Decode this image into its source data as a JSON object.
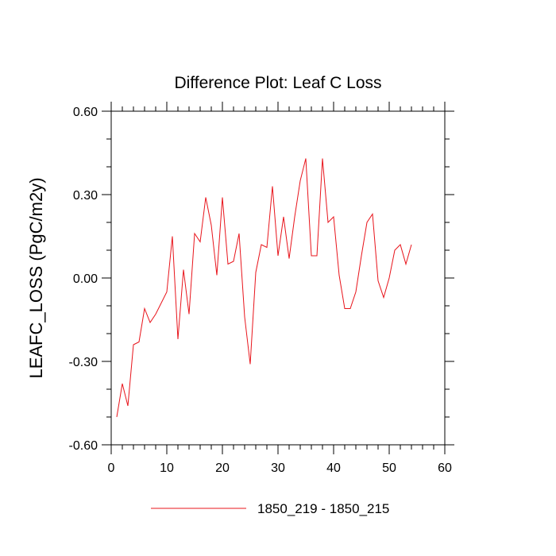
{
  "chart_data": {
    "type": "line",
    "title": "Difference Plot: Leaf C Loss",
    "xlabel": "",
    "ylabel": "LEAFC_LOSS  (PgC/m2y)",
    "xlim": [
      0,
      60
    ],
    "ylim": [
      -0.6,
      0.6
    ],
    "x_ticks": [
      0,
      10,
      20,
      30,
      40,
      50,
      60
    ],
    "x_tick_labels": [
      "0",
      "10",
      "20",
      "30",
      "40",
      "50",
      "60"
    ],
    "y_ticks": [
      -0.6,
      -0.3,
      0.0,
      0.3,
      0.6
    ],
    "y_tick_labels": [
      "-0.60",
      "-0.30",
      "0.00",
      "0.30",
      "0.60"
    ],
    "grid": false,
    "legend_position": "bottom",
    "series": [
      {
        "name": "1850_219 - 1850_215",
        "color": "#e8141b",
        "x": [
          1,
          2,
          3,
          4,
          5,
          6,
          7,
          8,
          9,
          10,
          11,
          12,
          13,
          14,
          15,
          16,
          17,
          18,
          19,
          20,
          21,
          22,
          23,
          24,
          25,
          26,
          27,
          28,
          29,
          30,
          31,
          32,
          33,
          34,
          35,
          36,
          37,
          38,
          39,
          40,
          41,
          42,
          43,
          44,
          45,
          46,
          47,
          48,
          49,
          50,
          51,
          52,
          53,
          54
        ],
        "y": [
          -0.5,
          -0.38,
          -0.46,
          -0.24,
          -0.23,
          -0.11,
          -0.16,
          -0.13,
          -0.09,
          -0.05,
          0.15,
          -0.22,
          0.03,
          -0.13,
          0.16,
          0.13,
          0.29,
          0.19,
          0.01,
          0.29,
          0.05,
          0.06,
          0.16,
          -0.14,
          -0.31,
          0.02,
          0.12,
          0.11,
          0.33,
          0.08,
          0.22,
          0.07,
          0.22,
          0.35,
          0.43,
          0.08,
          0.08,
          0.43,
          0.2,
          0.22,
          0.01,
          -0.11,
          -0.11,
          -0.05,
          0.08,
          0.2,
          0.23,
          -0.01,
          -0.07,
          0.0,
          0.1,
          0.12,
          0.05,
          0.12
        ]
      }
    ]
  }
}
